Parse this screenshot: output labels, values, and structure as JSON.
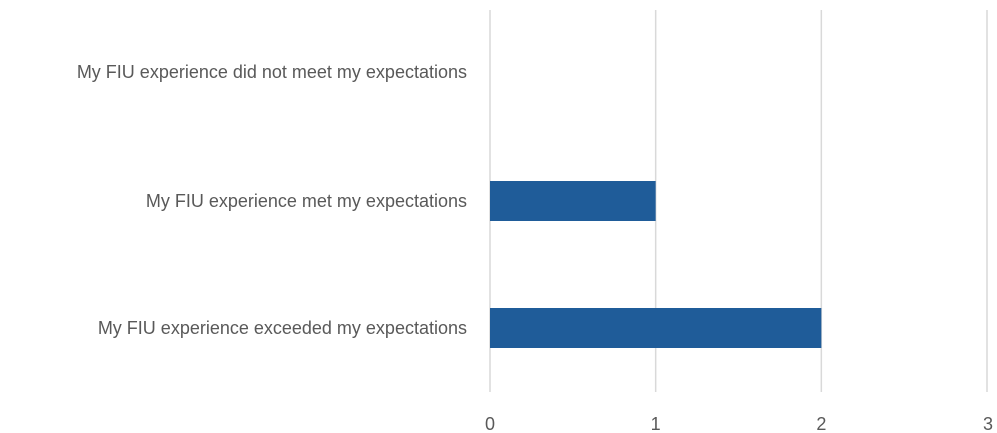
{
  "chart_data": {
    "type": "bar",
    "orientation": "horizontal",
    "categories": [
      "My FIU experience did not meet my expectations",
      "My FIU experience met my expectations",
      "My FIU experience exceeded my expectations"
    ],
    "values": [
      0,
      1,
      2
    ],
    "title": "",
    "xlabel": "",
    "ylabel": "",
    "xlim": [
      0,
      3
    ],
    "xticks": [
      "0",
      "1",
      "2",
      "3"
    ],
    "grid": true,
    "legend": "none",
    "bar_color": "#1f5c99",
    "gridline_color": "#d9d9d9",
    "label_color": "#595959"
  }
}
